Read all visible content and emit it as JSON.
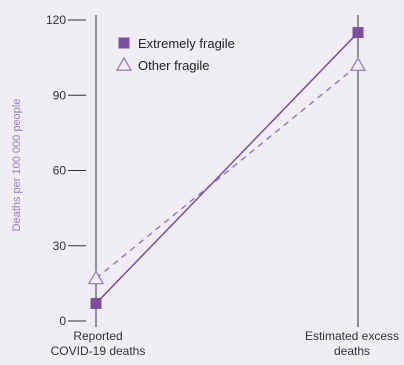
{
  "chart_data": {
    "type": "line",
    "categories": [
      "Reported\nCOVID-19 deaths",
      "Estimated excess\ndeaths"
    ],
    "series": [
      {
        "name": "Extremely fragile",
        "values": [
          7,
          115
        ],
        "marker": "square",
        "line": "solid",
        "color": "#7b4fa0"
      },
      {
        "name": "Other fragile",
        "values": [
          17,
          102
        ],
        "marker": "triangle-open",
        "line": "dashed",
        "color": "#9a7cc0"
      }
    ],
    "ylabel": "Deaths per 100 000 people",
    "xlabel": "",
    "ylim": [
      0,
      120
    ],
    "yticks": [
      0,
      30,
      60,
      90,
      120
    ],
    "legend_position": "top-left",
    "grid": false
  },
  "colors": {
    "background": "#f0edf4",
    "axis": "#333333",
    "ylabel": "#9a7cc0"
  }
}
